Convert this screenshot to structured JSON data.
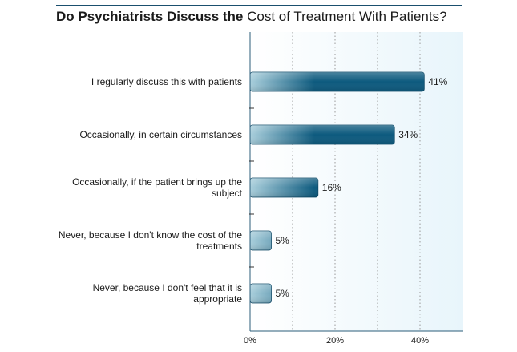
{
  "title": {
    "bold_part": "Do Psychiatrists Discuss the",
    "normal_part": "Cost of Treatment With Patients?"
  },
  "chart_data": {
    "type": "bar",
    "orientation": "horizontal",
    "categories": [
      [
        "I regularly discuss this with patients"
      ],
      [
        "Occasionally, in certain circumstances"
      ],
      [
        "Occasionally, if the patient brings up the",
        "subject"
      ],
      [
        "Never, because I don't know the cost of the",
        "treatments"
      ],
      [
        "Never, because I don't feel that it is",
        "appropriate"
      ]
    ],
    "values": [
      41,
      34,
      16,
      5,
      5
    ],
    "value_labels": [
      "41%",
      "34%",
      "16%",
      "5%",
      "5%"
    ],
    "xlim": [
      0,
      50
    ],
    "ticks": [
      0,
      20,
      40
    ],
    "tick_labels": [
      "0%",
      "20%",
      "40%"
    ],
    "gridlines": [
      10,
      20,
      30,
      40
    ],
    "colors": {
      "bar_dark": "#0d5a7e",
      "bar_light": "#a9cfdc",
      "plot_bg": "#eef7fb",
      "grid": "#9a9a9a",
      "axis": "#2b5d7a"
    }
  }
}
